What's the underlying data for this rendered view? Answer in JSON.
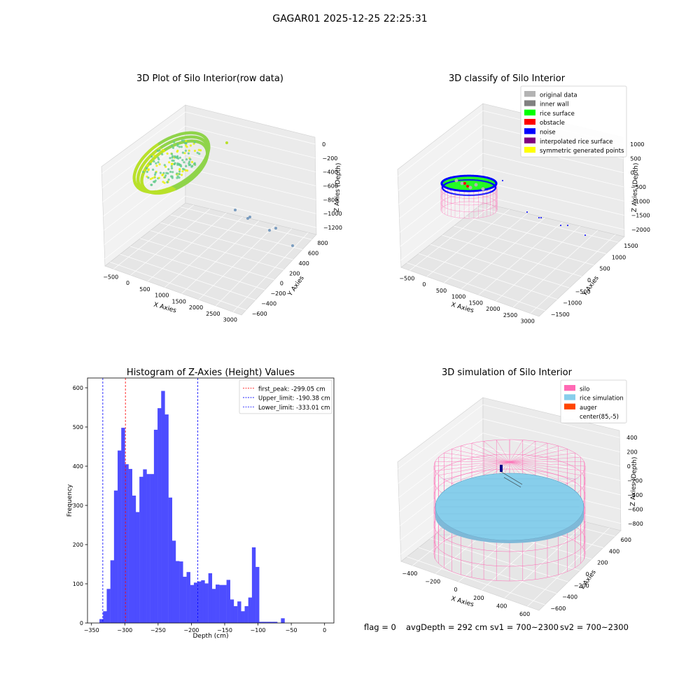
{
  "suptitle": "GAGAR01 2025-12-25 22:25:31",
  "chart_data": [
    {
      "type": "scatter",
      "title": "3D Plot of Silo Interior(row data)",
      "xlabel": "X Axies",
      "ylabel": "Y Axies",
      "zlabel": "Z Axies (Depth)",
      "x_ticks": [
        "−500",
        "0",
        "500",
        "1000",
        "1500",
        "2000",
        "2500",
        "3000"
      ],
      "y_ticks": [
        "−600",
        "−400",
        "−200",
        "0",
        "200",
        "400",
        "600",
        "800"
      ],
      "z_ticks": [
        "0",
        "−200",
        "−400",
        "−600",
        "−800",
        "−1000",
        "−1200"
      ],
      "xlim": [
        -600,
        3100
      ],
      "ylim": [
        -650,
        850
      ],
      "zlim": [
        -1300,
        50
      ]
    },
    {
      "type": "scatter",
      "title": "3D classify of Silo Interior",
      "xlabel": "X Axies",
      "ylabel": "Y Axies",
      "zlabel": "Z Axies (Depth)",
      "x_ticks": [
        "−500",
        "0",
        "500",
        "1000",
        "1500",
        "2000",
        "2500",
        "3000"
      ],
      "y_ticks": [
        "−1500",
        "−1000",
        "−500",
        "0",
        "500",
        "1000",
        "1500"
      ],
      "z_ticks": [
        "1000",
        "500",
        "0",
        "−500",
        "−1000",
        "−1500",
        "−2000"
      ],
      "legend": [
        {
          "label": "original data",
          "color": "#b3b3b3"
        },
        {
          "label": "inner wall",
          "color": "#808080"
        },
        {
          "label": "rice surface",
          "color": "#00ff00"
        },
        {
          "label": "obstacle",
          "color": "#ff0000"
        },
        {
          "label": "noise",
          "color": "#0000ff"
        },
        {
          "label": "interpolated rice surface",
          "color": "#800080"
        },
        {
          "label": "symmetric generated points",
          "color": "#ffff00"
        }
      ],
      "legend_loc": "upper right"
    },
    {
      "type": "bar",
      "title": "Histogram of Z-Axies (Height) Values",
      "xlabel": "Depth (cm)",
      "ylabel": "Frequency",
      "xlim": [
        -356,
        14
      ],
      "ylim": [
        0,
        625
      ],
      "x_ticks": [
        -350,
        -300,
        -250,
        -200,
        -150,
        -100,
        -50,
        0
      ],
      "y_ticks": [
        0,
        100,
        200,
        300,
        400,
        500,
        600
      ],
      "bin_start": -338,
      "bin_width": 5.45,
      "values": [
        10,
        30,
        87,
        160,
        338,
        440,
        498,
        405,
        393,
        325,
        283,
        373,
        392,
        380,
        380,
        493,
        548,
        592,
        532,
        320,
        210,
        158,
        157,
        118,
        130,
        97,
        103,
        106,
        109,
        101,
        127,
        87,
        98,
        97,
        97,
        110,
        60,
        43,
        55,
        30,
        43,
        65,
        193,
        143,
        3,
        3,
        3,
        3,
        3,
        0,
        12
      ],
      "vlines": [
        {
          "label": "first_peak: -299.05 cm",
          "x": -299.05,
          "color": "#ff0000"
        },
        {
          "label": "Upper_limit: -190.38 cm",
          "x": -190.38,
          "color": "#0000ff"
        },
        {
          "label": "Lower_limit: -333.01 cm",
          "x": -333.01,
          "color": "#0000ff"
        }
      ],
      "bar_color": "#4d4dff",
      "legend_loc": "upper right"
    },
    {
      "type": "scatter",
      "title": "3D simulation of Silo Interior",
      "xlabel": "X Axies",
      "ylabel": "Y Axies",
      "zlabel": "Z Axies (Depth)",
      "x_ticks": [
        "−400",
        "−200",
        "0",
        "200",
        "400",
        "600"
      ],
      "y_ticks": [
        "−600",
        "−400",
        "−200",
        "0",
        "200",
        "400",
        "600"
      ],
      "z_ticks": [
        "400",
        "200",
        "0",
        "−200",
        "−400",
        "−600",
        "−800"
      ],
      "legend": [
        {
          "label": "silo",
          "color": "#ff69b4"
        },
        {
          "label": "rice simulation",
          "color": "#87ceeb"
        },
        {
          "label": "auger",
          "color": "#ff4500"
        },
        {
          "label": "center(85,-5)",
          "color": "#ffffff"
        }
      ],
      "legend_loc": "upper right"
    }
  ],
  "status": {
    "flag": "flag = 0",
    "avg_depth": "avgDepth = 292 cm",
    "sv1": "sv1 = 700~2300",
    "sv2": "sv2 = 700~2300"
  }
}
